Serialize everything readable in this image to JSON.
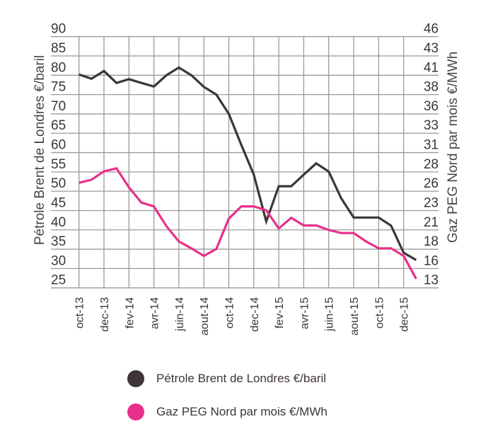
{
  "chart_data": {
    "type": "line",
    "title": "",
    "x": [
      "oct-13",
      "nov-13",
      "dec-13",
      "jan-14",
      "fev-14",
      "mar-14",
      "avr-14",
      "mai-14",
      "juin-14",
      "juil-14",
      "aout-14",
      "sep-14",
      "oct-14",
      "nov-14",
      "dec-14",
      "jan-15",
      "fev-15",
      "mar-15",
      "avr-15",
      "mai-15",
      "juin-15",
      "juil-15",
      "aout-15",
      "sep-15",
      "oct-15",
      "nov-15",
      "dec-15",
      "jan-16"
    ],
    "x_tick_labels": [
      "oct-13",
      "dec-13",
      "fev-14",
      "avr-14",
      "juin-14",
      "aout-14",
      "oct-14",
      "dec-14",
      "fev-15",
      "avr-15",
      "juin-15",
      "aout-15",
      "oct-15",
      "dec-15"
    ],
    "xlabel": "",
    "ylabel": "Pétrole Brent de Londres €/baril",
    "ylabel_right": "Gaz PEG Nord par mois €/MWh",
    "ylim": [
      25,
      90
    ],
    "ylim_right": [
      13,
      46
    ],
    "y_ticks": [
      90,
      85,
      80,
      75,
      70,
      65,
      60,
      55,
      50,
      45,
      40,
      35,
      30,
      25
    ],
    "y_ticks_right": [
      46,
      43,
      41,
      38,
      36,
      33,
      31,
      28,
      26,
      23,
      21,
      18,
      16,
      13
    ],
    "grid": true,
    "legend_position": "bottom",
    "series": [
      {
        "name": "Pétrole Brent de Londres €/baril",
        "axis": "left",
        "color": "#3d3536",
        "values": [
          80.2,
          79.1,
          81.1,
          78,
          79,
          78,
          77.1,
          80,
          82,
          80,
          77,
          75,
          70,
          62,
          54.3,
          42.2,
          51.3,
          51.3,
          54.3,
          57.2,
          55.1,
          48.2,
          43.2,
          43.2,
          43.2,
          41.1,
          34.1,
          32.2
        ]
      },
      {
        "name": "Gaz PEG Nord par mois €/MWh",
        "axis": "right",
        "color": "#e8308a",
        "values": [
          26.8,
          27.2,
          28.3,
          28.7,
          26.2,
          24.2,
          23.7,
          21.1,
          19.1,
          18.2,
          17.2,
          18.1,
          22.1,
          23.7,
          23.7,
          23.2,
          20.8,
          22.2,
          21.2,
          21.2,
          20.6,
          20.2,
          20.2,
          19.1,
          18.2,
          18.2,
          17.2,
          14.2
        ]
      }
    ]
  },
  "legend": {
    "items": [
      {
        "label": "Pétrole Brent de Londres €/baril",
        "color": "#3d3536"
      },
      {
        "label": "Gaz PEG Nord par mois €/MWh",
        "color": "#e8308a"
      }
    ]
  }
}
